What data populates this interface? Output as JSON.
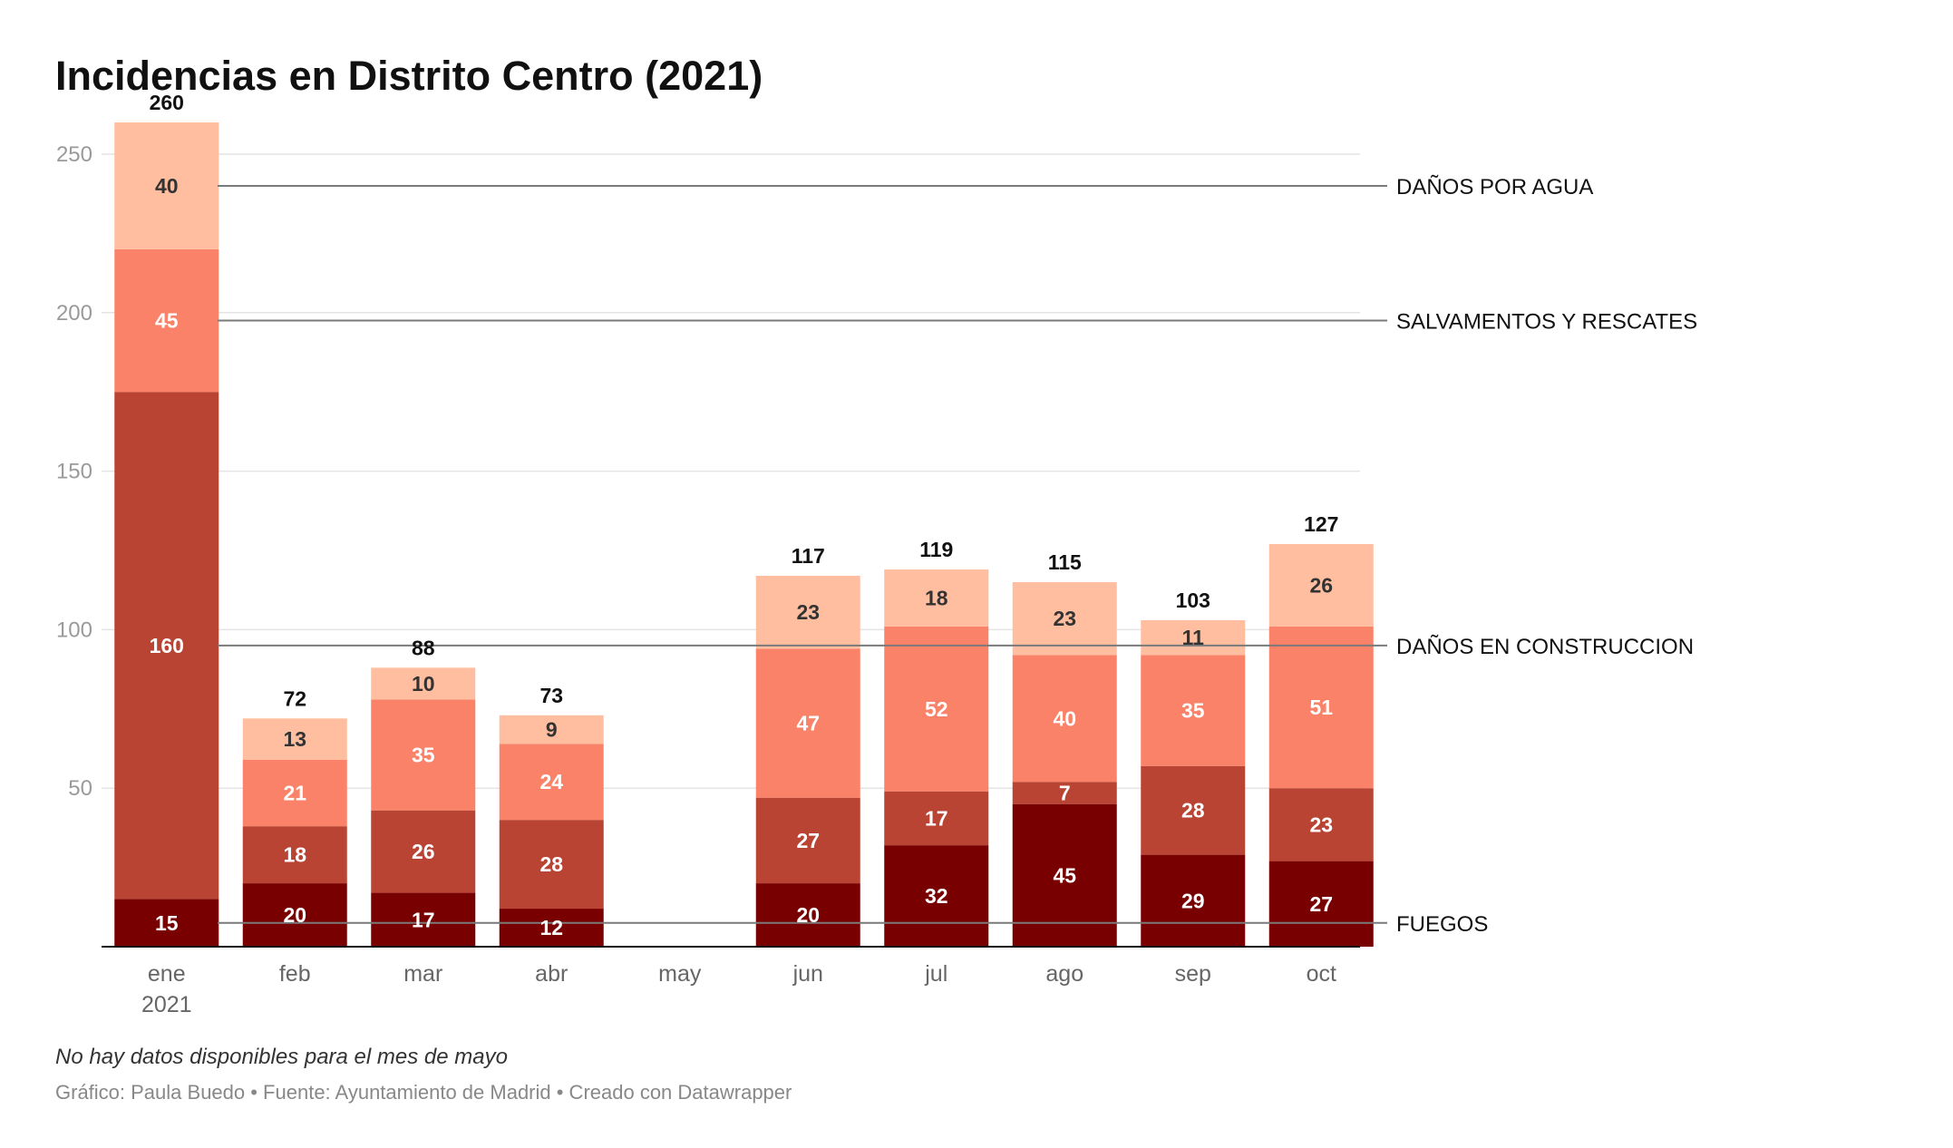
{
  "title": "Incidencias en Distrito Centro (2021)",
  "chart_data": {
    "type": "bar",
    "stacked": true,
    "title": "Incidencias en Distrito Centro (2021)",
    "categories": [
      "ene",
      "feb",
      "mar",
      "abr",
      "may",
      "jun",
      "jul",
      "ago",
      "sep",
      "oct"
    ],
    "first_category_sublabel": "2021",
    "ylim": [
      0,
      260
    ],
    "yticks": [
      50,
      100,
      150,
      200,
      250
    ],
    "grid": true,
    "series": [
      {
        "name": "FUEGOS",
        "color": "#780000",
        "values": [
          15,
          20,
          17,
          12,
          null,
          20,
          32,
          45,
          29,
          27
        ]
      },
      {
        "name": "DAÑOS EN CONSTRUCCION",
        "color": "#b94434",
        "values": [
          160,
          18,
          26,
          28,
          null,
          27,
          17,
          7,
          28,
          23
        ]
      },
      {
        "name": "SALVAMENTOS Y RESCATES",
        "color": "#fa8268",
        "values": [
          45,
          21,
          35,
          24,
          null,
          47,
          52,
          40,
          35,
          51
        ]
      },
      {
        "name": "DAÑOS POR AGUA",
        "color": "#ffbe9f",
        "values": [
          40,
          13,
          10,
          9,
          null,
          23,
          18,
          23,
          11,
          26
        ]
      }
    ],
    "totals": [
      260,
      72,
      88,
      73,
      null,
      117,
      119,
      115,
      103,
      127
    ],
    "legend": "right, inline labels"
  },
  "footer": {
    "note": "No hay datos disponibles para el mes de mayo",
    "credits": "Gráfico: Paula Buedo • Fuente: Ayuntamiento de Madrid • Creado con Datawrapper"
  }
}
